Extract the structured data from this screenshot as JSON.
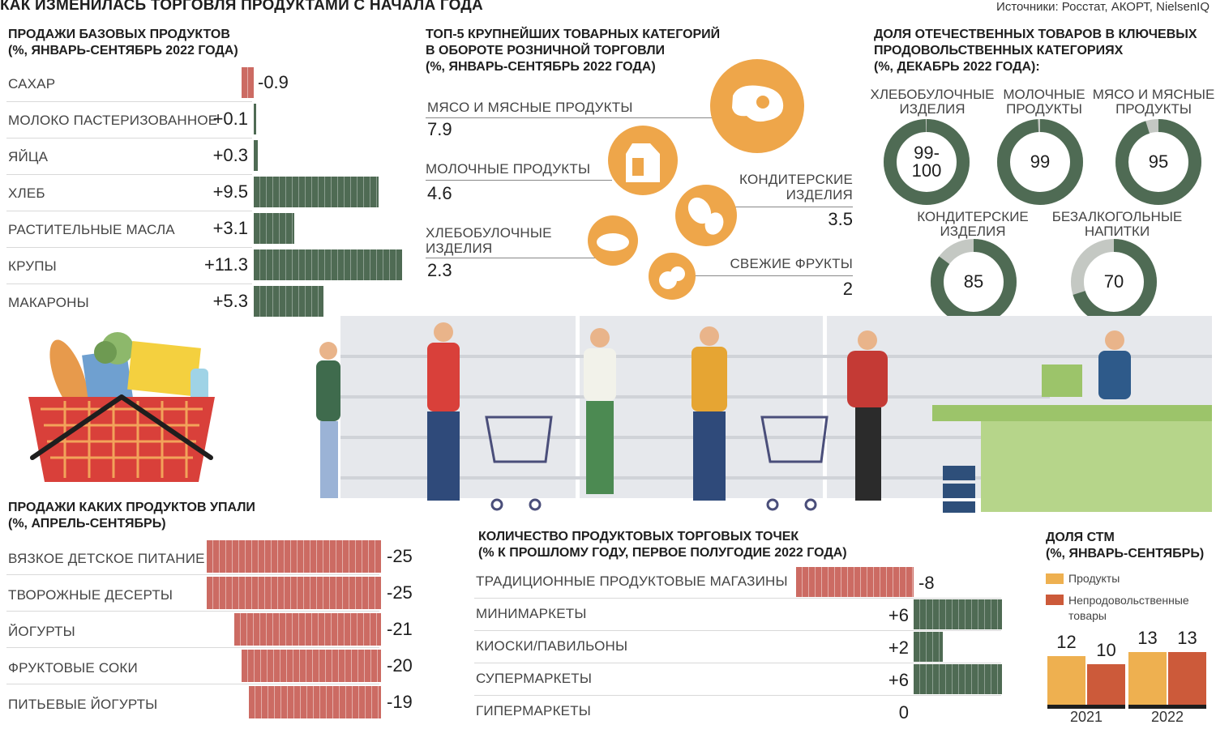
{
  "title": "КАК ИЗМЕНИЛАСЬ ТОРГОВЛЯ ПРОДУКТАМИ С НАЧАЛА ГОДА",
  "sources": "Источники: Росстат, АКОРТ, NielsenIQ",
  "colors": {
    "green": "#4f6b54",
    "red": "#cc6b63",
    "orange": "#eea64a",
    "ring_gray": "#c4c8c3",
    "stm_light": "#eeb050",
    "stm_dark": "#cc5a3a"
  },
  "basic_sales": {
    "title_line1": "ПРОДАЖИ БАЗОВЫХ ПРОДУКТОВ",
    "title_line2": "(%, ЯНВАРЬ-СЕНТЯБРЬ 2022 ГОДА)",
    "rows": [
      {
        "label": "САХАР",
        "value_text": "-0.9"
      },
      {
        "label": "МОЛОКО ПАСТЕРИЗОВАННОЕ",
        "value_text": "+0.1"
      },
      {
        "label": "ЯЙЦА",
        "value_text": "+0.3"
      },
      {
        "label": "ХЛЕБ",
        "value_text": "+9.5"
      },
      {
        "label": "РАСТИТЕЛЬНЫЕ МАСЛА",
        "value_text": "+3.1"
      },
      {
        "label": "КРУПЫ",
        "value_text": "+11.3"
      },
      {
        "label": "МАКАРОНЫ",
        "value_text": "+5.3"
      }
    ]
  },
  "top5": {
    "title_line1": "ТОП-5 КРУПНЕЙШИХ ТОВАРНЫХ КАТЕГОРИЙ",
    "title_line2": "В ОБОРОТЕ РОЗНИЧНОЙ ТОРГОВЛИ",
    "title_line3": "(%, ЯНВАРЬ-СЕНТЯБРЬ 2022 ГОДА)",
    "items": [
      {
        "label_line1": "МЯСО И МЯСНЫЕ ПРОДУКТЫ",
        "label_line2": "",
        "value": "7.9",
        "icon": "meat-icon"
      },
      {
        "label_line1": "МОЛОЧНЫЕ ПРОДУКТЫ",
        "label_line2": "",
        "value": "4.6",
        "icon": "milk-carton-icon"
      },
      {
        "label_line1": "КОНДИТЕРСКИЕ",
        "label_line2": "ИЗДЕЛИЯ",
        "value": "3.5",
        "icon": "candy-icon"
      },
      {
        "label_line1": "ХЛЕБОБУЛОЧНЫЕ",
        "label_line2": "ИЗДЕЛИЯ",
        "value": "2.3",
        "icon": "bread-icon"
      },
      {
        "label_line1": "СВЕЖИЕ ФРУКТЫ",
        "label_line2": "",
        "value": "2",
        "icon": "fruit-icon"
      }
    ]
  },
  "domestic": {
    "title_line1": "ДОЛЯ ОТЕЧЕСТВЕННЫХ ТОВАРОВ В КЛЮЧЕВЫХ",
    "title_line2": "ПРОДОВОЛЬСТВЕННЫХ КАТЕГОРИЯХ",
    "title_line3": "(%, ДЕКАБРЬ 2022 ГОДА):",
    "items": [
      {
        "label_line1": "ХЛЕБОБУЛОЧНЫЕ",
        "label_line2": "ИЗДЕЛИЯ",
        "value_line1": "99-",
        "value_line2": "100",
        "share": 99.5
      },
      {
        "label_line1": "МОЛОЧНЫЕ",
        "label_line2": "ПРОДУКТЫ",
        "value_line1": "99",
        "value_line2": "",
        "share": 99
      },
      {
        "label_line1": "МЯСО И МЯСНЫЕ",
        "label_line2": "ПРОДУКТЫ",
        "value_line1": "95",
        "value_line2": "",
        "share": 95
      },
      {
        "label_line1": "КОНДИТЕРСКИЕ",
        "label_line2": "ИЗДЕЛИЯ",
        "value_line1": "85",
        "value_line2": "",
        "share": 85
      },
      {
        "label_line1": "БЕЗАЛКОГОЛЬНЫЕ",
        "label_line2": "НАПИТКИ",
        "value_line1": "70",
        "value_line2": "",
        "share": 70
      }
    ]
  },
  "fallen": {
    "title_line1": "ПРОДАЖИ КАКИХ ПРОДУКТОВ УПАЛИ",
    "title_line2": "(%, АПРЕЛЬ-СЕНТЯБРЬ)",
    "rows": [
      {
        "label": "ВЯЗКОЕ ДЕТСКОЕ ПИТАНИЕ",
        "value_text": "-25"
      },
      {
        "label": "ТВОРОЖНЫЕ ДЕСЕРТЫ",
        "value_text": "-25"
      },
      {
        "label": "ЙОГУРТЫ",
        "value_text": "-21"
      },
      {
        "label": "ФРУКТОВЫЕ СОКИ",
        "value_text": "-20"
      },
      {
        "label": "ПИТЬЕВЫЕ ЙОГУРТЫ",
        "value_text": "-19"
      }
    ]
  },
  "outlets": {
    "title_line1": "КОЛИЧЕСТВО ПРОДУКТОВЫХ ТОРГОВЫХ ТОЧЕК",
    "title_line2": "(% К ПРОШЛОМУ ГОДУ, ПЕРВОЕ ПОЛУГОДИЕ 2022 ГОДА)",
    "rows": [
      {
        "label": "ТРАДИЦИОННЫЕ ПРОДУКТОВЫЕ МАГАЗИНЫ",
        "value_text": "-8"
      },
      {
        "label": "МИНИМАРКЕТЫ",
        "value_text": "+6"
      },
      {
        "label": "КИОСКИ/ПАВИЛЬОНЫ",
        "value_text": "+2"
      },
      {
        "label": "СУПЕРМАРКЕТЫ",
        "value_text": "+6"
      },
      {
        "label": "ГИПЕРМАРКЕТЫ",
        "value_text": "0"
      }
    ]
  },
  "stm": {
    "title_line1": "ДОЛЯ СТМ",
    "title_line2": "(%, ЯНВАРЬ-СЕНТЯБРЬ)",
    "legend_products": "Продукты",
    "legend_nonfood_line1": "Непродовольственные",
    "legend_nonfood_line2": "товары",
    "years": [
      {
        "year": "2021",
        "products_text": "12",
        "nonfood_text": "10"
      },
      {
        "year": "2022",
        "products_text": "13",
        "nonfood_text": "13"
      }
    ]
  },
  "chart_data": [
    {
      "type": "bar",
      "title": "ПРОДАЖИ БАЗОВЫХ ПРОДУКТОВ (%, ЯНВАРЬ-СЕНТЯБРЬ 2022 ГОДА)",
      "categories": [
        "САХАР",
        "МОЛОКО ПАСТЕРИЗОВАННОЕ",
        "ЯЙЦА",
        "ХЛЕБ",
        "РАСТИТЕЛЬНЫЕ МАСЛА",
        "КРУПЫ",
        "МАКАРОНЫ"
      ],
      "values": [
        -0.9,
        0.1,
        0.3,
        9.5,
        3.1,
        11.3,
        5.3
      ]
    },
    {
      "type": "bar",
      "title": "ТОП-5 КРУПНЕЙШИХ ТОВАРНЫХ КАТЕГОРИЙ В ОБОРОТЕ РОЗНИЧНОЙ ТОРГОВЛИ (%, ЯНВАРЬ-СЕНТЯБРЬ 2022 ГОДА)",
      "categories": [
        "МЯСО И МЯСНЫЕ ПРОДУКТЫ",
        "МОЛОЧНЫЕ ПРОДУКТЫ",
        "КОНДИТЕРСКИЕ ИЗДЕЛИЯ",
        "ХЛЕБОБУЛОЧНЫЕ ИЗДЕЛИЯ",
        "СВЕЖИЕ ФРУКТЫ"
      ],
      "values": [
        7.9,
        4.6,
        3.5,
        2.3,
        2
      ]
    },
    {
      "type": "pie",
      "title": "ДОЛЯ ОТЕЧЕСТВЕННЫХ ТОВАРОВ В КЛЮЧЕВЫХ ПРОДОВОЛЬСТВЕННЫХ КАТЕГОРИЯХ (%, ДЕКАБРЬ 2022 ГОДА)",
      "categories": [
        "ХЛЕБОБУЛОЧНЫЕ ИЗДЕЛИЯ",
        "МОЛОЧНЫЕ ПРОДУКТЫ",
        "МЯСО И МЯСНЫЕ ПРОДУКТЫ",
        "КОНДИТЕРСКИЕ ИЗДЕЛИЯ",
        "БЕЗАЛКОГОЛЬНЫЕ НАПИТКИ"
      ],
      "values": [
        99.5,
        99,
        95,
        85,
        70
      ]
    },
    {
      "type": "bar",
      "title": "ПРОДАЖИ КАКИХ ПРОДУКТОВ УПАЛИ (%, АПРЕЛЬ-СЕНТЯБРЬ)",
      "categories": [
        "ВЯЗКОЕ ДЕТСКОЕ ПИТАНИЕ",
        "ТВОРОЖНЫЕ ДЕСЕРТЫ",
        "ЙОГУРТЫ",
        "ФРУКТОВЫЕ СОКИ",
        "ПИТЬЕВЫЕ ЙОГУРТЫ"
      ],
      "values": [
        -25,
        -25,
        -21,
        -20,
        -19
      ]
    },
    {
      "type": "bar",
      "title": "КОЛИЧЕСТВО ПРОДУКТОВЫХ ТОРГОВЫХ ТОЧЕК (% К ПРОШЛОМУ ГОДУ, ПЕРВОЕ ПОЛУГОДИЕ 2022 ГОДА)",
      "categories": [
        "ТРАДИЦИОННЫЕ ПРОДУКТОВЫЕ МАГАЗИНЫ",
        "МИНИМАРКЕТЫ",
        "КИОСКИ/ПАВИЛЬОНЫ",
        "СУПЕРМАРКЕТЫ",
        "ГИПЕРМАРКЕТЫ"
      ],
      "values": [
        -8,
        6,
        2,
        6,
        0
      ]
    },
    {
      "type": "bar",
      "title": "ДОЛЯ СТМ (%, ЯНВАРЬ-СЕНТЯБРЬ)",
      "categories": [
        "2021",
        "2022"
      ],
      "series": [
        {
          "name": "Продукты",
          "values": [
            12,
            13
          ]
        },
        {
          "name": "Непродовольственные товары",
          "values": [
            10,
            13
          ]
        }
      ]
    }
  ]
}
